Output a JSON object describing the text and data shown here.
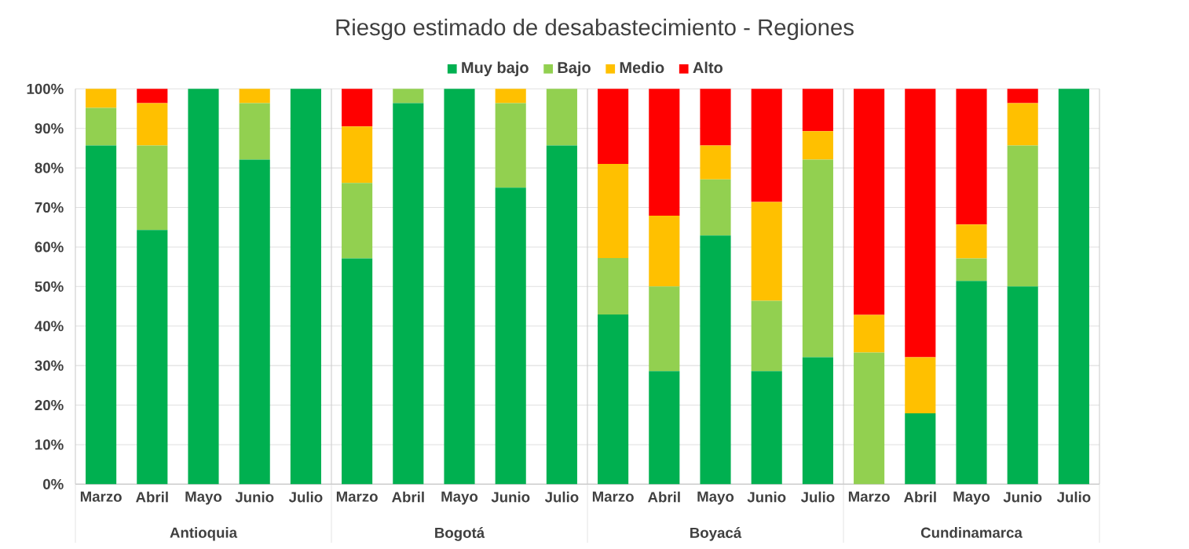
{
  "chart_data": {
    "type": "bar",
    "title": "Riesgo estimado de desabastecimiento - Regiones",
    "stacked": true,
    "legend": "top",
    "grid": "y",
    "categories": [
      "Marzo",
      "Abril",
      "Mayo",
      "Junio",
      "Julio",
      "Marzo",
      "Abril",
      "Mayo",
      "Junio",
      "Julio",
      "Marzo",
      "Abril",
      "Mayo",
      "Junio",
      "Julio",
      "Marzo",
      "Abril",
      "Mayo",
      "Junio",
      "Julio"
    ],
    "annotations": [
      "Antioquia",
      "Bogotá",
      "Boyacá",
      "Cundinamarca"
    ],
    "ylim": [
      0,
      100
    ],
    "yticks": [
      {
        "value": 0,
        "label": "0%"
      },
      {
        "value": 10,
        "label": "10%"
      },
      {
        "value": 20,
        "label": "20%"
      },
      {
        "value": 30,
        "label": "30%"
      },
      {
        "value": 40,
        "label": "40%"
      },
      {
        "value": 50,
        "label": "50%"
      },
      {
        "value": 60,
        "label": "60%"
      },
      {
        "value": 70,
        "label": "70%"
      },
      {
        "value": 80,
        "label": "80%"
      },
      {
        "value": 90,
        "label": "90%"
      },
      {
        "value": 100,
        "label": "100%"
      }
    ],
    "series": [
      {
        "name": "Muy bajo",
        "color": "#00b050",
        "values": [
          85.7,
          64.3,
          100,
          82.1,
          100,
          57.1,
          96.4,
          100,
          75,
          85.7,
          42.9,
          28.6,
          62.9,
          28.6,
          32.1,
          0,
          17.9,
          51.4,
          50,
          100
        ]
      },
      {
        "name": "Bajo",
        "color": "#92d050",
        "values": [
          9.5,
          21.4,
          0,
          14.3,
          0,
          19.1,
          3.6,
          0,
          21.4,
          14.3,
          14.3,
          21.4,
          14.2,
          17.8,
          50,
          33.3,
          0,
          5.7,
          35.7,
          0
        ]
      },
      {
        "name": "Medio",
        "color": "#ffc000",
        "values": [
          4.8,
          10.7,
          0,
          3.6,
          0,
          14.3,
          0,
          0,
          3.6,
          0,
          23.8,
          17.9,
          8.6,
          25,
          7.2,
          9.5,
          14.2,
          8.6,
          10.7,
          0
        ]
      },
      {
        "name": "Alto",
        "color": "#ff0000",
        "values": [
          0,
          3.6,
          0,
          0,
          0,
          9.5,
          0,
          0,
          0,
          0,
          19,
          32.1,
          14.3,
          28.6,
          10.7,
          57.2,
          67.9,
          34.3,
          3.6,
          0
        ]
      }
    ]
  }
}
